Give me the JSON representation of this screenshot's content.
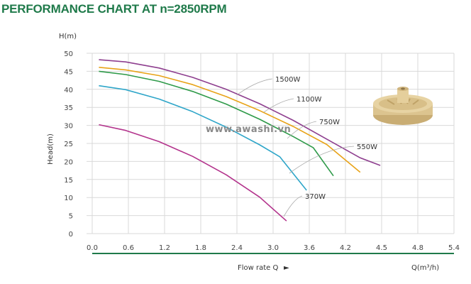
{
  "title": "PERFORMANCE CHART AT n=2850RPM",
  "watermark": "www.awashi.vn",
  "chart_data": {
    "type": "line",
    "ylabel_top": "H(m)",
    "ylabel_side": "Head(m)",
    "xlabel": "Flow rate Q",
    "xlabel_arrow": "►",
    "xunit": "Q(m³/h)",
    "xlim": [
      0,
      5.4
    ],
    "ylim": [
      0,
      50
    ],
    "xticks": [
      "0.0",
      "0.6",
      "1.2",
      "1.8",
      "2.4",
      "3.0",
      "3.6",
      "4.2",
      "4.5",
      "4.8",
      "5.4"
    ],
    "yticks": [
      0,
      5,
      10,
      15,
      20,
      25,
      30,
      35,
      40,
      45,
      50
    ],
    "grid": true,
    "series": [
      {
        "name": "1500W",
        "color": "#8e3f8f",
        "x": [
          0.1,
          0.5,
          1.0,
          1.5,
          2.0,
          2.5,
          3.0,
          3.5,
          4.0,
          4.3
        ],
        "y": [
          48.2,
          47.6,
          45.9,
          43.3,
          40.0,
          36.0,
          31.4,
          26.2,
          21.0,
          18.9
        ]
      },
      {
        "name": "1100W",
        "color": "#e8a318",
        "x": [
          0.1,
          0.5,
          1.0,
          1.5,
          2.0,
          2.5,
          3.0,
          3.5,
          4.0
        ],
        "y": [
          46.1,
          45.4,
          43.8,
          41.3,
          38.0,
          34.1,
          29.7,
          24.7,
          17.0
        ]
      },
      {
        "name": "750W",
        "color": "#2e9a49",
        "x": [
          0.1,
          0.5,
          1.0,
          1.5,
          2.0,
          2.5,
          3.0,
          3.3,
          3.6
        ],
        "y": [
          45.0,
          44.1,
          42.2,
          39.4,
          35.9,
          31.7,
          26.9,
          23.8,
          16.0
        ]
      },
      {
        "name": "550W",
        "color": "#2fa6c9",
        "x": [
          0.1,
          0.5,
          1.0,
          1.5,
          2.0,
          2.5,
          2.8,
          3.2
        ],
        "y": [
          41.0,
          39.9,
          37.3,
          33.8,
          29.5,
          24.6,
          21.3,
          12.0
        ]
      },
      {
        "name": "370W",
        "color": "#b3338c",
        "x": [
          0.1,
          0.5,
          1.0,
          1.5,
          2.0,
          2.5,
          2.9
        ],
        "y": [
          30.2,
          28.6,
          25.5,
          21.4,
          16.3,
          10.1,
          3.5
        ]
      }
    ]
  }
}
